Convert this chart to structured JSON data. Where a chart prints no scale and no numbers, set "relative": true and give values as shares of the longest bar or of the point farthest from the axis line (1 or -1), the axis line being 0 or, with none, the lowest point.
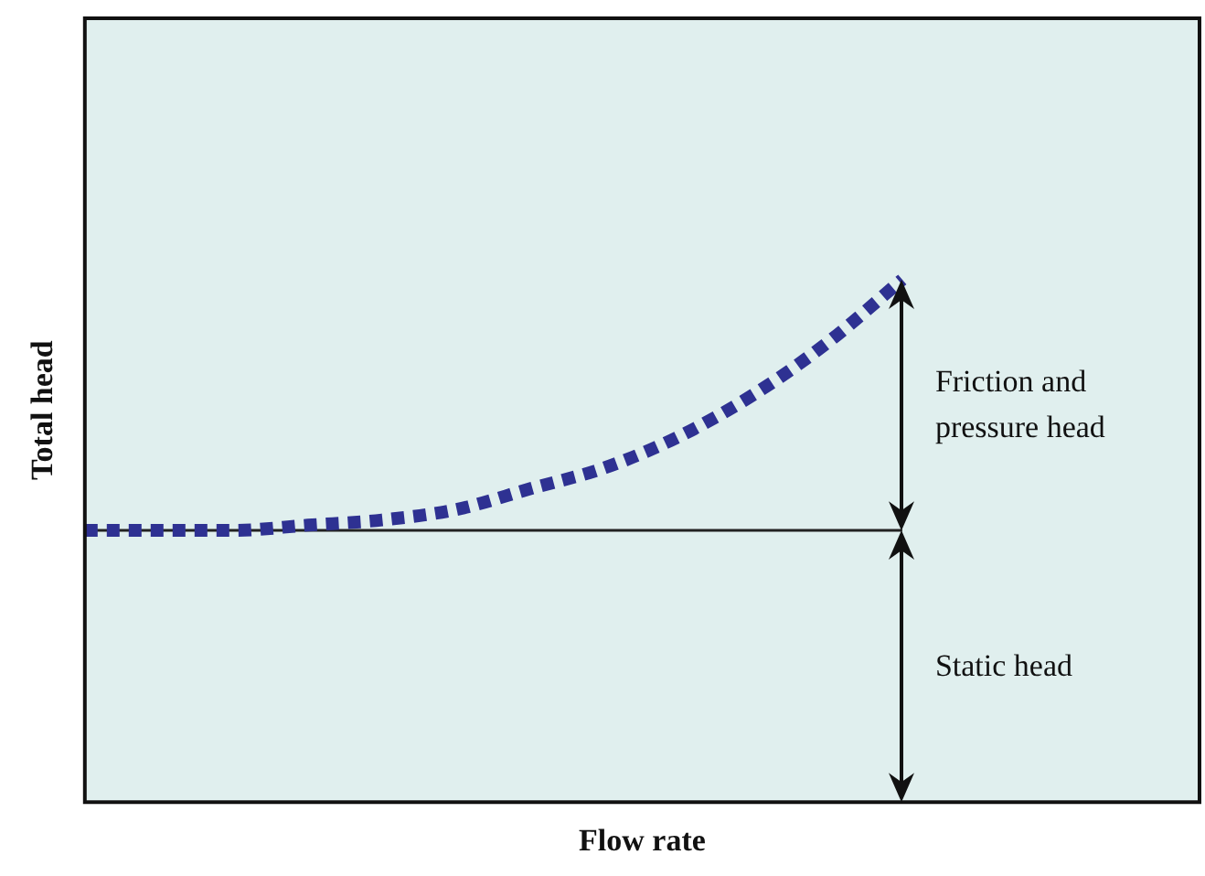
{
  "chart_data": {
    "type": "line",
    "xlabel": "Flow rate",
    "ylabel": "Total head",
    "relative": true,
    "categories": [
      null,
      null,
      null,
      null,
      null,
      null,
      null,
      null,
      null,
      null,
      null,
      null,
      null,
      null,
      null,
      null
    ],
    "series": [
      {
        "color": "#2e3192",
        "values": [
          0.52,
          0.52,
          0.52,
          0.53,
          0.54,
          0.56,
          0.6,
          0.64,
          0.7,
          0.78,
          0.88,
          1.0,
          null,
          null,
          null,
          null
        ]
      }
    ],
    "line_style": "dashed",
    "marker": "none",
    "grid": false,
    "legend": false,
    "ref_lines": [
      {
        "axis": "y",
        "value": 0.52,
        "color": "#222222"
      }
    ],
    "annotations": [
      "Friction and pressure head",
      "Static head"
    ]
  }
}
